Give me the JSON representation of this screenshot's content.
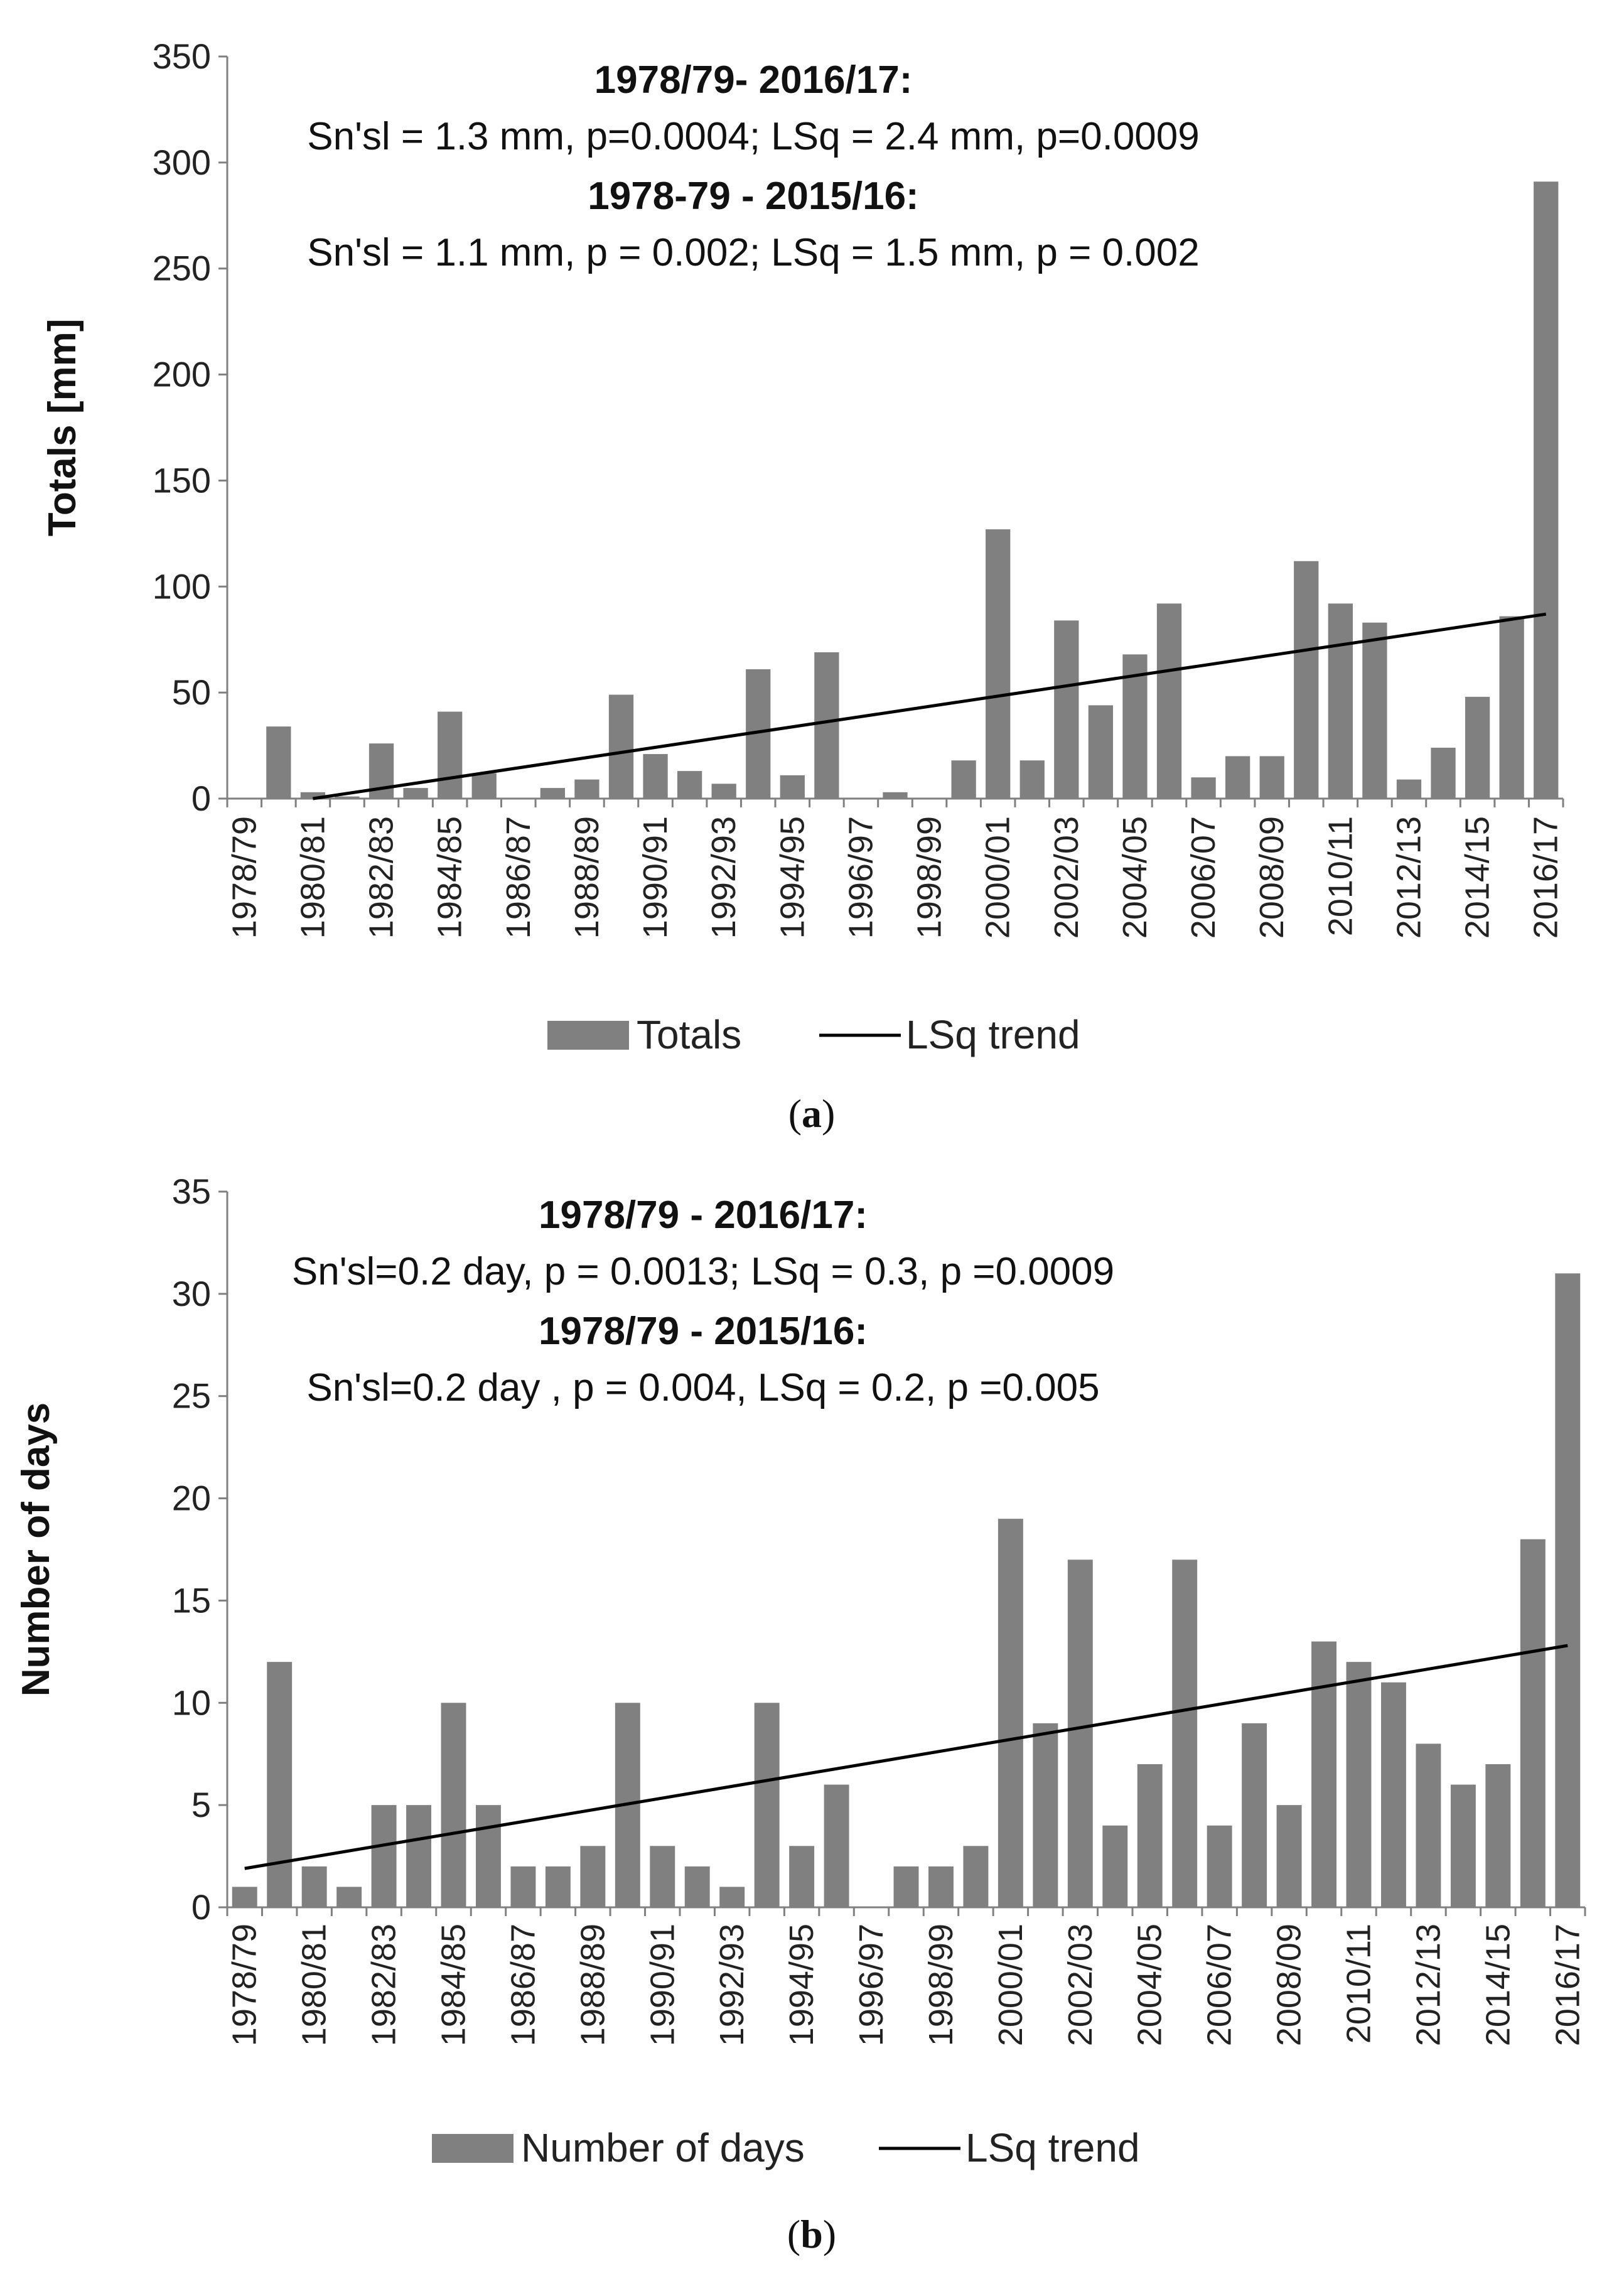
{
  "chart_data": [
    {
      "type": "bar",
      "panel_label": "a",
      "ylabel": "Totals [mm]",
      "ylim": [
        0,
        350
      ],
      "yticks": [
        0,
        50,
        100,
        150,
        200,
        250,
        300,
        350
      ],
      "categories": [
        "1978/79",
        "1979/80",
        "1980/81",
        "1981/82",
        "1982/83",
        "1983/84",
        "1984/85",
        "1985/86",
        "1986/87",
        "1987/88",
        "1988/89",
        "1989/90",
        "1990/91",
        "1991/92",
        "1992/93",
        "1993/94",
        "1994/95",
        "1995/96",
        "1996/97",
        "1997/98",
        "1998/99",
        "1999/00",
        "2000/01",
        "2001/02",
        "2002/03",
        "2003/04",
        "2004/05",
        "2005/06",
        "2006/07",
        "2007/08",
        "2008/09",
        "2009/10",
        "2010/11",
        "2011/12",
        "2012/13",
        "2013/14",
        "2014/15",
        "2015/16",
        "2016/17"
      ],
      "shown_categories": [
        "1978/79",
        "1980/81",
        "1982/83",
        "1984/85",
        "1986/87",
        "1988/89",
        "1990/91",
        "1992/93",
        "1994/95",
        "1996/97",
        "1998/99",
        "2000/01",
        "2002/03",
        "2004/05",
        "2006/07",
        "2008/09",
        "2010/11",
        "2012/13",
        "2014/15",
        "2016/17"
      ],
      "series": [
        {
          "name": "Totals",
          "values": [
            0,
            34,
            3,
            1,
            26,
            5,
            41,
            12,
            0,
            5,
            9,
            49,
            21,
            13,
            7,
            61,
            11,
            69,
            0,
            3,
            0,
            18,
            127,
            18,
            84,
            44,
            68,
            92,
            10,
            20,
            20,
            112,
            92,
            83,
            9,
            24,
            48,
            86,
            291
          ]
        }
      ],
      "trend": {
        "name": "LSq trend",
        "start_index": 2,
        "start_value": 0,
        "end_index": 38,
        "end_value": 87
      },
      "annotations": [
        {
          "text": "1978/79- 2016/17:",
          "bold": true
        },
        {
          "text": "Sn'sl = 1.3 mm, p=0.0004; LSq = 2.4 mm, p=0.0009",
          "bold": false
        },
        {
          "text": "1978-79 - 2015/16:",
          "bold": true
        },
        {
          "text": "Sn'sl = 1.1 mm, p = 0.002; LSq = 1.5 mm, p = 0.002",
          "bold": false
        }
      ],
      "legend": {
        "bars": "Totals",
        "line": "LSq trend"
      },
      "colors": {
        "bar": "#808080",
        "line": "#000000",
        "axis": "#808080"
      }
    },
    {
      "type": "bar",
      "panel_label": "b",
      "ylabel": "Number of days",
      "ylim": [
        0,
        35
      ],
      "yticks": [
        0,
        5,
        10,
        15,
        20,
        25,
        30,
        35
      ],
      "categories": [
        "1978/79",
        "1979/80",
        "1980/81",
        "1981/82",
        "1982/83",
        "1983/84",
        "1984/85",
        "1985/86",
        "1986/87",
        "1987/88",
        "1988/89",
        "1989/90",
        "1990/91",
        "1991/92",
        "1992/93",
        "1993/94",
        "1994/95",
        "1995/96",
        "1996/97",
        "1997/98",
        "1998/99",
        "1999/00",
        "2000/01",
        "2001/02",
        "2002/03",
        "2003/04",
        "2004/05",
        "2005/06",
        "2006/07",
        "2007/08",
        "2008/09",
        "2009/10",
        "2010/11",
        "2011/12",
        "2012/13",
        "2013/14",
        "2014/15",
        "2015/16",
        "2016/17"
      ],
      "shown_categories": [
        "1978/79",
        "1980/81",
        "1982/83",
        "1984/85",
        "1986/87",
        "1988/89",
        "1990/91",
        "1992/93",
        "1994/95",
        "1996/97",
        "1998/99",
        "2000/01",
        "2002/03",
        "2004/05",
        "2006/07",
        "2008/09",
        "2010/11",
        "2012/13",
        "2014/15",
        "2016/17"
      ],
      "series": [
        {
          "name": "Number of days",
          "values": [
            1,
            12,
            2,
            1,
            5,
            5,
            10,
            5,
            2,
            2,
            3,
            10,
            3,
            2,
            1,
            10,
            3,
            6,
            0,
            2,
            2,
            3,
            19,
            9,
            17,
            4,
            7,
            17,
            4,
            9,
            5,
            13,
            12,
            11,
            8,
            6,
            7,
            18,
            31
          ]
        }
      ],
      "trend": {
        "name": "LSq trend",
        "start_index": 0,
        "start_value": 1.9,
        "end_index": 38,
        "end_value": 12.8
      },
      "annotations": [
        {
          "text": "1978/79 - 2016/17:",
          "bold": true
        },
        {
          "text": "Sn'sl=0.2 day, p = 0.0013; LSq = 0.3, p =0.0009",
          "bold": false
        },
        {
          "text": "1978/79 - 2015/16:",
          "bold": true
        },
        {
          "text": "Sn'sl=0.2 day , p = 0.004, LSq = 0.2, p =0.005",
          "bold": false
        }
      ],
      "legend": {
        "bars": "Number of days",
        "line": "LSq trend"
      },
      "colors": {
        "bar": "#808080",
        "line": "#000000",
        "axis": "#808080"
      }
    }
  ]
}
